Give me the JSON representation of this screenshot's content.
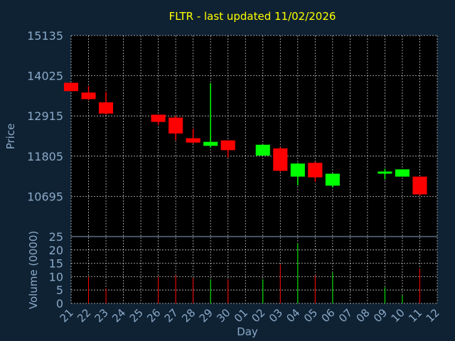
{
  "chart_data": {
    "type": "candlestick",
    "title": "FLTR - last updated 11/02/2026",
    "price_axis": {
      "label": "Price",
      "ticks": [
        15135,
        14025,
        12915,
        11805,
        10695
      ],
      "ylim": [
        9585,
        15135
      ]
    },
    "volume_axis": {
      "label": "Volume (0000)",
      "ticks": [
        0,
        5,
        10,
        15,
        20,
        25
      ],
      "ylim": [
        0,
        25
      ]
    },
    "xlabel": "Day",
    "x_ticks": [
      "21",
      "22",
      "23",
      "24",
      "25",
      "26",
      "27",
      "28",
      "29",
      "30",
      "01",
      "02",
      "03",
      "04",
      "05",
      "06",
      "07",
      "08",
      "09",
      "10",
      "11",
      "12"
    ],
    "colors": {
      "up": "#00ff00",
      "down": "#ff0000",
      "grid": "#ffffff",
      "axis_text": "#8aa9c8",
      "title": "#ffff00",
      "background": "#0f2233",
      "plot_bg": "#000000"
    },
    "candles": [
      {
        "day": "21",
        "open": 13830,
        "high": 13830,
        "low": 13600,
        "close": 13600,
        "volume": 0
      },
      {
        "day": "22",
        "open": 13560,
        "high": 13740,
        "low": 13350,
        "close": 13380,
        "volume": 10
      },
      {
        "day": "23",
        "open": 13290,
        "high": 13580,
        "low": 12950,
        "close": 12980,
        "volume": 5.5
      },
      {
        "day": "26",
        "open": 12950,
        "high": 12950,
        "low": 12660,
        "close": 12750,
        "volume": 10
      },
      {
        "day": "27",
        "open": 12870,
        "high": 12920,
        "low": 12240,
        "close": 12430,
        "volume": 10.5
      },
      {
        "day": "28",
        "open": 12300,
        "high": 12560,
        "low": 12160,
        "close": 12180,
        "volume": 9.5
      },
      {
        "day": "29",
        "open": 12090,
        "high": 13820,
        "low": 12040,
        "close": 12200,
        "volume": 9
      },
      {
        "day": "30",
        "open": 12240,
        "high": 12240,
        "low": 11770,
        "close": 11970,
        "volume": 9
      },
      {
        "day": "02",
        "open": 11820,
        "high": 12120,
        "low": 11820,
        "close": 12120,
        "volume": 9
      },
      {
        "day": "03",
        "open": 12020,
        "high": 12050,
        "low": 11380,
        "close": 11400,
        "volume": 14.5
      },
      {
        "day": "04",
        "open": 11240,
        "high": 11620,
        "low": 11000,
        "close": 11600,
        "volume": 22.5
      },
      {
        "day": "05",
        "open": 11620,
        "high": 11650,
        "low": 11100,
        "close": 11220,
        "volume": 10.5
      },
      {
        "day": "06",
        "open": 10990,
        "high": 11330,
        "low": 10940,
        "close": 11320,
        "volume": 11.5
      },
      {
        "day": "09",
        "open": 11330,
        "high": 11460,
        "low": 11160,
        "close": 11380,
        "volume": 6
      },
      {
        "day": "10",
        "open": 11240,
        "high": 11440,
        "low": 11240,
        "close": 11440,
        "volume": 3
      },
      {
        "day": "11",
        "open": 11240,
        "high": 11240,
        "low": 10720,
        "close": 10750,
        "volume": 13
      }
    ]
  }
}
